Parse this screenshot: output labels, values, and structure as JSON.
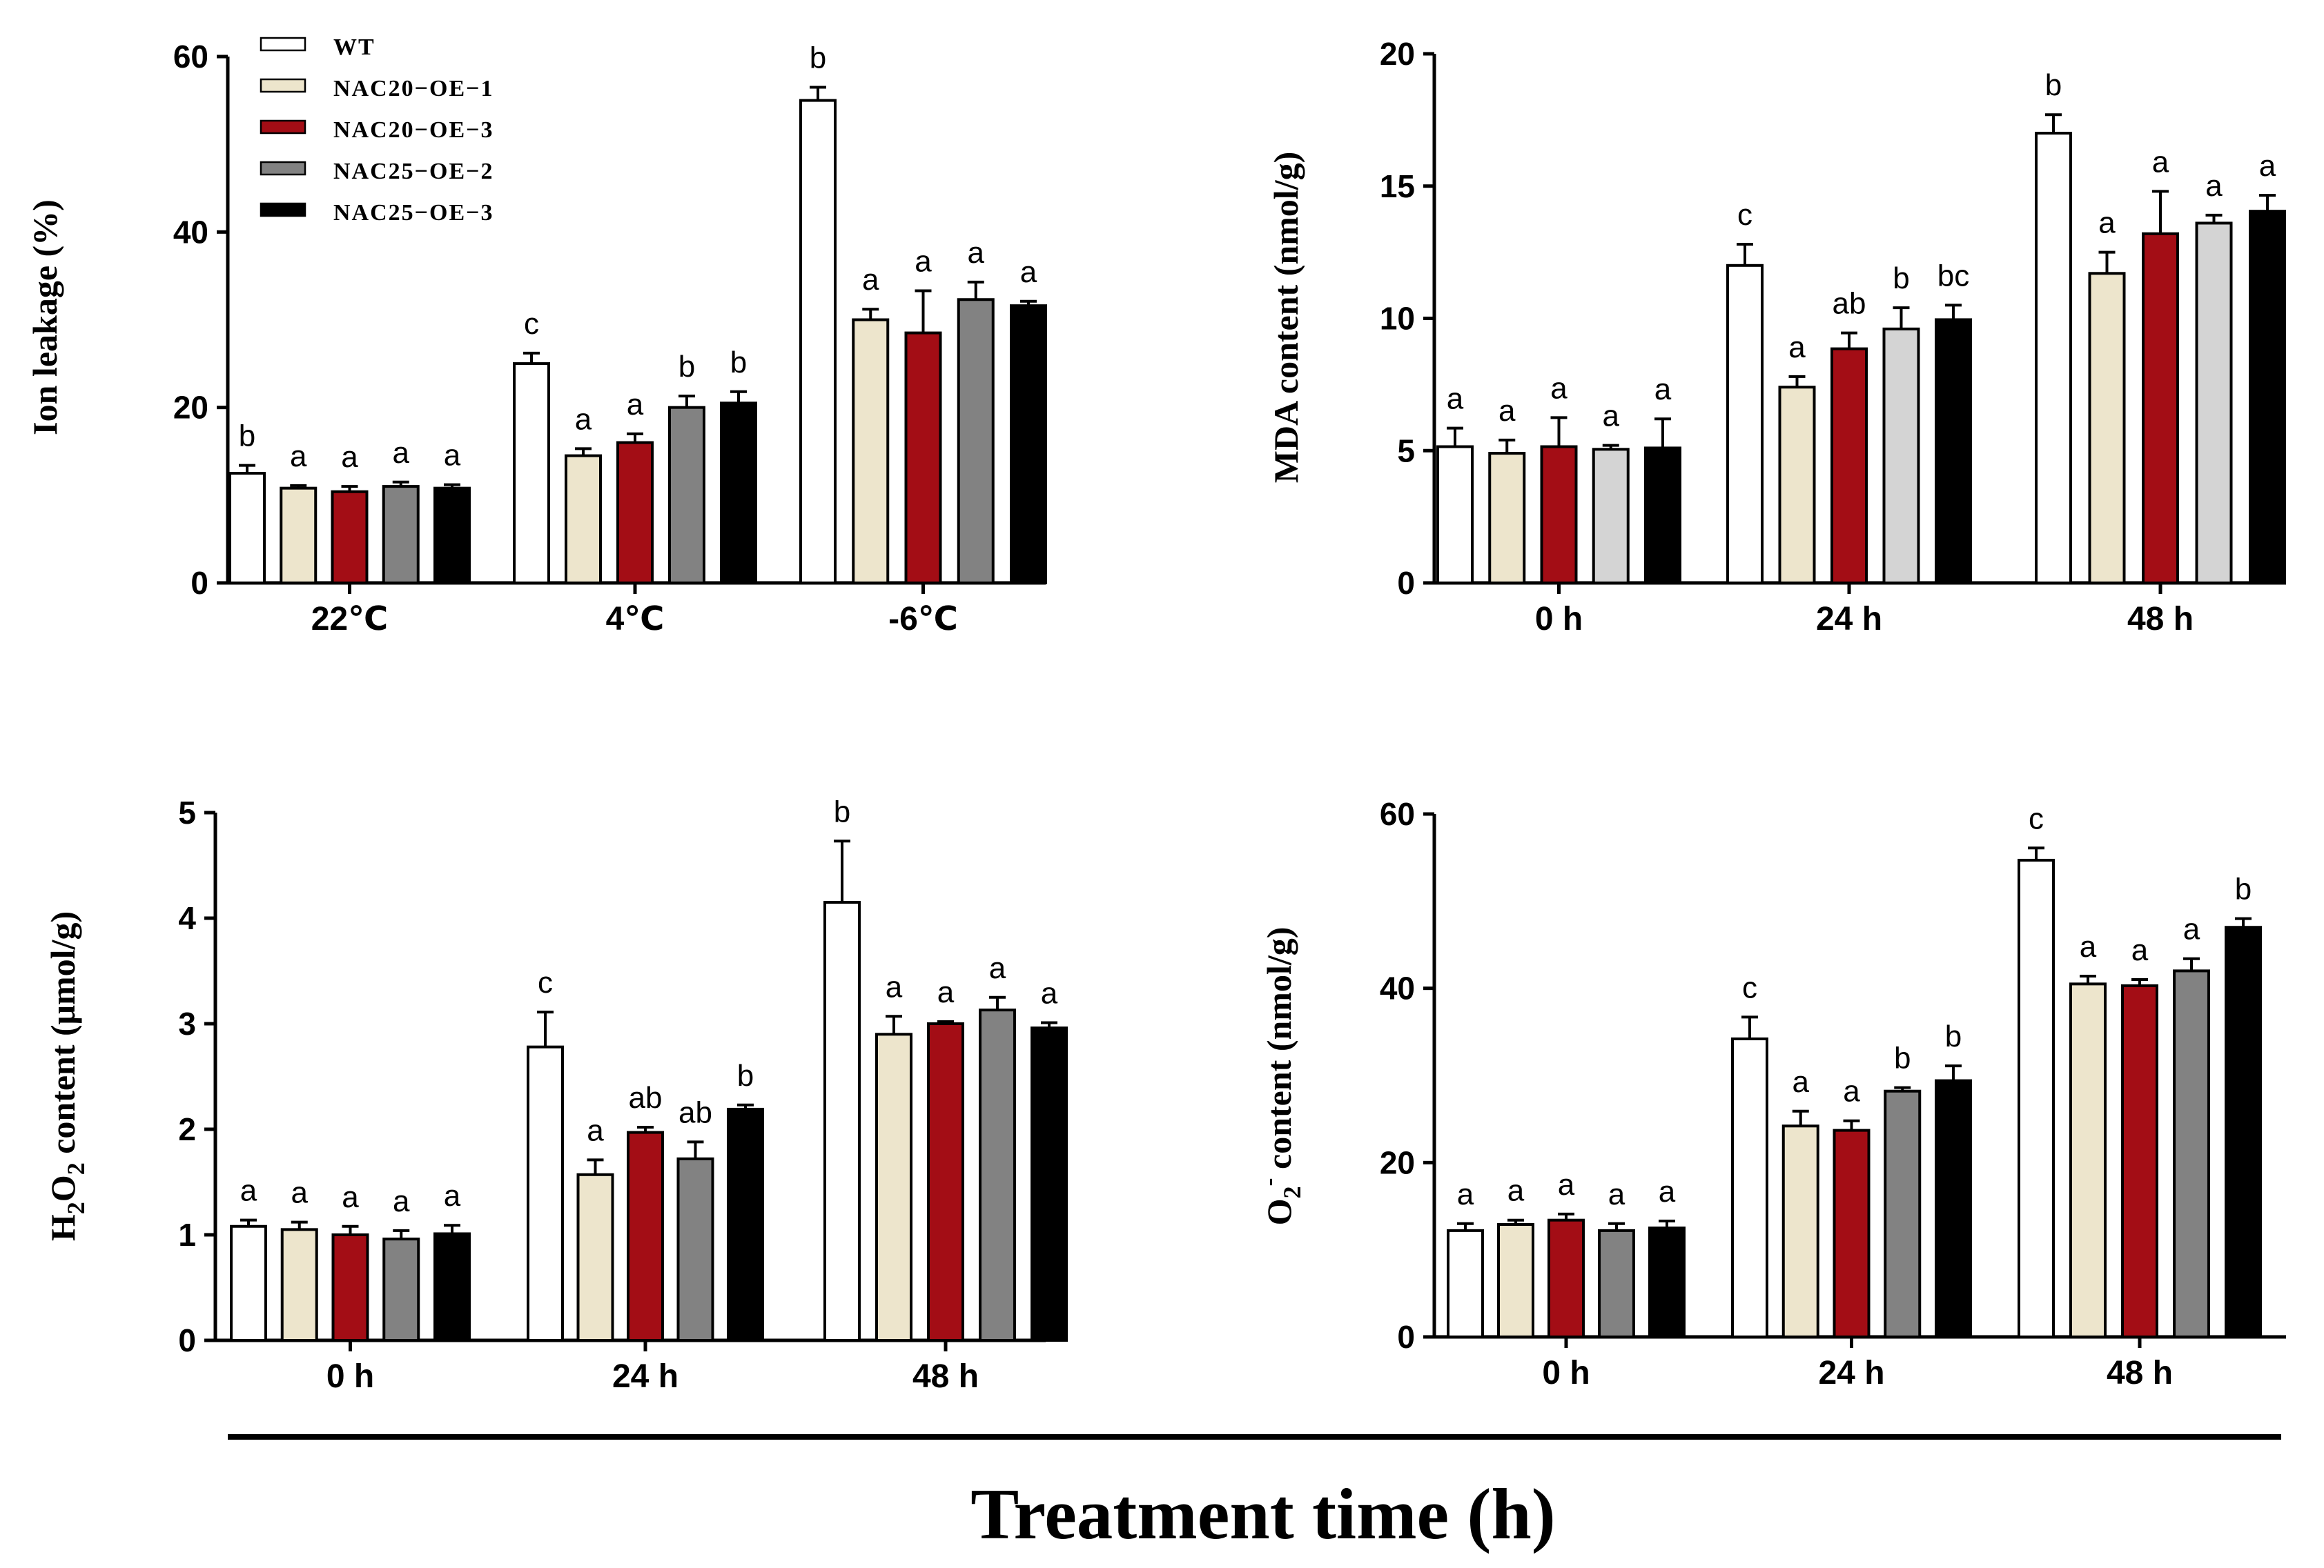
{
  "colors": {
    "WT": "#ffffff",
    "NAC20-OE-1": "#ede5cc",
    "NAC20-OE-3": "#a30d15",
    "NAC25-OE-2": "#828282",
    "NAC25-OE-2-light": "#d4d4d4",
    "NAC25-OE-3": "#000000"
  },
  "legend": {
    "entries": [
      "WT",
      "NAC20−OE−1",
      "NAC20−OE−3",
      "NAC25−OE−2",
      "NAC25−OE−3"
    ],
    "placement": "top-left of first panel"
  },
  "xlabel": "Treatment time (h)",
  "chart_data": [
    {
      "type": "bar",
      "title": "",
      "ylabel": "Ion leakage (%)",
      "xlabel": "",
      "ylim": [
        0,
        60
      ],
      "yticks": [
        "0",
        "20",
        "40",
        "60"
      ],
      "categories": [
        "22℃",
        "4℃",
        "-6℃"
      ],
      "series": [
        {
          "name": "WT",
          "color_key": "WT",
          "values": [
            12.5,
            25.0,
            55.0
          ],
          "errors": [
            0.9,
            1.2,
            1.5
          ],
          "letters": [
            "b",
            "c",
            "b"
          ]
        },
        {
          "name": "NAC20−OE−1",
          "color_key": "NAC20-OE-1",
          "values": [
            10.8,
            14.5,
            30.0
          ],
          "errors": [
            0.3,
            0.8,
            1.2
          ],
          "letters": [
            "a",
            "a",
            "a"
          ]
        },
        {
          "name": "NAC20−OE−3",
          "color_key": "NAC20-OE-3",
          "values": [
            10.4,
            16.0,
            28.5
          ],
          "errors": [
            0.6,
            1.0,
            4.8
          ],
          "letters": [
            "a",
            "a",
            "a"
          ]
        },
        {
          "name": "NAC25−OE−2",
          "color_key": "NAC25-OE-2",
          "values": [
            11.0,
            20.0,
            32.3
          ],
          "errors": [
            0.5,
            1.3,
            2.0
          ],
          "letters": [
            "a",
            "b",
            "a"
          ]
        },
        {
          "name": "NAC25−OE−3",
          "color_key": "NAC25-OE-3",
          "values": [
            10.8,
            20.5,
            31.6
          ],
          "errors": [
            0.4,
            1.3,
            0.5
          ],
          "letters": [
            "a",
            "b",
            "a"
          ]
        }
      ]
    },
    {
      "type": "bar",
      "title": "",
      "ylabel": "MDA content (nmol/g)",
      "xlabel": "",
      "ylim": [
        0,
        20
      ],
      "yticks": [
        "0",
        "5",
        "10",
        "15",
        "20"
      ],
      "categories": [
        "0 h",
        "24 h",
        "48 h"
      ],
      "series": [
        {
          "name": "WT",
          "color_key": "WT",
          "values": [
            5.15,
            12.0,
            17.0
          ],
          "errors": [
            0.7,
            0.8,
            0.7
          ],
          "letters": [
            "a",
            "c",
            "b"
          ]
        },
        {
          "name": "NAC20−OE−1",
          "color_key": "NAC20-OE-1",
          "values": [
            4.9,
            7.4,
            11.7
          ],
          "errors": [
            0.5,
            0.4,
            0.8
          ],
          "letters": [
            "a",
            "a",
            "a"
          ]
        },
        {
          "name": "NAC20−OE−3",
          "color_key": "NAC20-OE-3",
          "values": [
            5.15,
            8.85,
            13.2
          ],
          "errors": [
            1.1,
            0.6,
            1.6
          ],
          "letters": [
            "a",
            "ab",
            "a"
          ]
        },
        {
          "name": "NAC25−OE−2",
          "color_key": "NAC25-OE-2-light",
          "values": [
            5.05,
            9.6,
            13.6
          ],
          "errors": [
            0.15,
            0.8,
            0.3
          ],
          "letters": [
            "a",
            "b",
            "a"
          ]
        },
        {
          "name": "NAC25−OE−3",
          "color_key": "NAC25-OE-3",
          "values": [
            5.1,
            9.95,
            14.05
          ],
          "errors": [
            1.1,
            0.55,
            0.6
          ],
          "letters": [
            "a",
            "bc",
            "a"
          ]
        }
      ]
    },
    {
      "type": "bar",
      "title": "",
      "ylabel_parts": {
        "h": "H",
        "sub1": "2",
        "o": "O",
        "sub2": "2",
        "rest": " content (μmol/g)"
      },
      "xlabel": "",
      "ylim": [
        0,
        5
      ],
      "yticks": [
        "0",
        "1",
        "2",
        "3",
        "4",
        "5"
      ],
      "categories": [
        "0 h",
        "24 h",
        "48 h"
      ],
      "series": [
        {
          "name": "WT",
          "color_key": "WT",
          "values": [
            1.08,
            2.78,
            4.15
          ],
          "errors": [
            0.06,
            0.33,
            0.58
          ],
          "letters": [
            "a",
            "c",
            "b"
          ]
        },
        {
          "name": "NAC20−OE−1",
          "color_key": "NAC20-OE-1",
          "values": [
            1.05,
            1.57,
            2.9
          ],
          "errors": [
            0.07,
            0.14,
            0.17
          ],
          "letters": [
            "a",
            "a",
            "a"
          ]
        },
        {
          "name": "NAC20−OE−3",
          "color_key": "NAC20-OE-3",
          "values": [
            1.0,
            1.97,
            3.0
          ],
          "errors": [
            0.08,
            0.05,
            0.02
          ],
          "letters": [
            "a",
            "ab",
            "a"
          ]
        },
        {
          "name": "NAC25−OE−2",
          "color_key": "NAC25-OE-2",
          "values": [
            0.96,
            1.72,
            3.13
          ],
          "errors": [
            0.08,
            0.16,
            0.12
          ],
          "letters": [
            "a",
            "ab",
            "a"
          ]
        },
        {
          "name": "NAC25−OE−3",
          "color_key": "NAC25-OE-3",
          "values": [
            1.01,
            2.19,
            2.96
          ],
          "errors": [
            0.08,
            0.04,
            0.05
          ],
          "letters": [
            "a",
            "b",
            "a"
          ]
        }
      ]
    },
    {
      "type": "bar",
      "title": "",
      "ylabel_parts": {
        "o": "O",
        "sub": "2",
        "sup": "-",
        "rest": " content (nmol/g)"
      },
      "xlabel": "",
      "ylim": [
        0,
        60
      ],
      "yticks": [
        "0",
        "20",
        "40",
        "60"
      ],
      "categories": [
        "0 h",
        "24 h",
        "48 h"
      ],
      "series": [
        {
          "name": "WT",
          "color_key": "WT",
          "values": [
            12.2,
            34.2,
            54.7
          ],
          "errors": [
            0.8,
            2.5,
            1.4
          ],
          "letters": [
            "a",
            "c",
            "c"
          ]
        },
        {
          "name": "NAC20−OE−1",
          "color_key": "NAC20-OE-1",
          "values": [
            12.9,
            24.2,
            40.5
          ],
          "errors": [
            0.5,
            1.7,
            0.9
          ],
          "letters": [
            "a",
            "a",
            "a"
          ]
        },
        {
          "name": "NAC20−OE−3",
          "color_key": "NAC20-OE-3",
          "values": [
            13.4,
            23.7,
            40.3
          ],
          "errors": [
            0.7,
            1.1,
            0.7
          ],
          "letters": [
            "a",
            "a",
            "a"
          ]
        },
        {
          "name": "NAC25−OE−2",
          "color_key": "NAC25-OE-2",
          "values": [
            12.2,
            28.2,
            42.0
          ],
          "errors": [
            0.8,
            0.4,
            1.4
          ],
          "letters": [
            "a",
            "b",
            "a"
          ]
        },
        {
          "name": "NAC25−OE−3",
          "color_key": "NAC25-OE-3",
          "values": [
            12.5,
            29.4,
            47.0
          ],
          "errors": [
            0.8,
            1.7,
            1.0
          ],
          "letters": [
            "a",
            "b",
            "b"
          ]
        }
      ]
    }
  ]
}
